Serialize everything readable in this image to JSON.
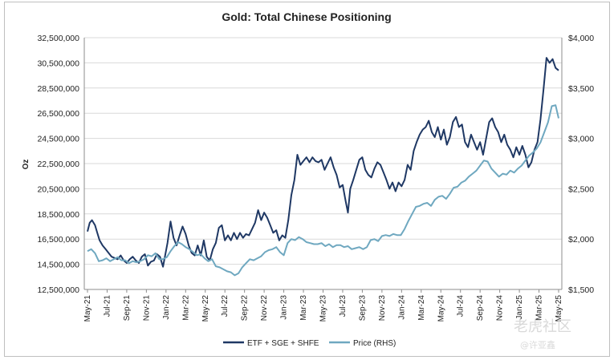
{
  "chart_data": {
    "type": "line",
    "title": "Gold: Total Chinese Positioning",
    "ylabel": "Oz",
    "y2label": "",
    "ylim": [
      12500000,
      32500000
    ],
    "y2lim": [
      1500,
      4000
    ],
    "yticks": [
      "32,500,000",
      "30,500,000",
      "28,500,000",
      "26,500,000",
      "24,500,000",
      "22,500,000",
      "20,500,000",
      "18,500,000",
      "16,500,000",
      "14,500,000",
      "12,500,000"
    ],
    "y2ticks": [
      "$4,000",
      "$3,500",
      "$3,000",
      "$2,500",
      "$2,000",
      "$1,500"
    ],
    "xticks": [
      "May-21",
      "Jul-21",
      "Sep-21",
      "Nov-21",
      "Jan-22",
      "Mar-22",
      "May-22",
      "Jul-22",
      "Sep-22",
      "Nov-22",
      "Jan-23",
      "Mar-23",
      "May-23",
      "Jul-23",
      "Sep-23",
      "Nov-23",
      "Jan-24",
      "Mar-24",
      "May-24",
      "Jul-24",
      "Sep-24",
      "Nov-24",
      "Jan-25",
      "Mar-25",
      "May-25"
    ],
    "legend_position": "bottom",
    "grid": "horizontal",
    "series": [
      {
        "name": "ETF + SGE + SHFE",
        "axis": "left",
        "color": "#1f3864",
        "points": [
          [
            0,
            17100000
          ],
          [
            0.3,
            17800000
          ],
          [
            0.6,
            18000000
          ],
          [
            1.0,
            17600000
          ],
          [
            1.3,
            17000000
          ],
          [
            1.6,
            16400000
          ],
          [
            2.0,
            16000000
          ],
          [
            2.4,
            15700000
          ],
          [
            2.8,
            15400000
          ],
          [
            3.2,
            15100000
          ],
          [
            3.6,
            15000000
          ],
          [
            4.0,
            14900000
          ],
          [
            4.4,
            15200000
          ],
          [
            4.8,
            14800000
          ],
          [
            5.2,
            14600000
          ],
          [
            5.6,
            14900000
          ],
          [
            6.0,
            15100000
          ],
          [
            6.4,
            14800000
          ],
          [
            6.8,
            14600000
          ],
          [
            7.2,
            15100000
          ],
          [
            7.6,
            15300000
          ],
          [
            8.0,
            14400000
          ],
          [
            8.4,
            14700000
          ],
          [
            8.8,
            14800000
          ],
          [
            9.2,
            15300000
          ],
          [
            9.6,
            15100000
          ],
          [
            10.0,
            14300000
          ],
          [
            10.6,
            16200000
          ],
          [
            11.0,
            17900000
          ],
          [
            11.4,
            16600000
          ],
          [
            11.8,
            16000000
          ],
          [
            12.2,
            16800000
          ],
          [
            12.6,
            17500000
          ],
          [
            13.0,
            16900000
          ],
          [
            13.4,
            16000000
          ],
          [
            13.8,
            15400000
          ],
          [
            14.2,
            15200000
          ],
          [
            14.6,
            16000000
          ],
          [
            15.0,
            15200000
          ],
          [
            15.4,
            16400000
          ],
          [
            15.8,
            15100000
          ],
          [
            16.2,
            14800000
          ],
          [
            16.6,
            15700000
          ],
          [
            17.0,
            16200000
          ],
          [
            17.4,
            17400000
          ],
          [
            17.8,
            17600000
          ],
          [
            18.2,
            16400000
          ],
          [
            18.6,
            16800000
          ],
          [
            19.0,
            16400000
          ],
          [
            19.4,
            17000000
          ],
          [
            19.8,
            16500000
          ],
          [
            20.2,
            17000000
          ],
          [
            20.6,
            16600000
          ],
          [
            21.0,
            16900000
          ],
          [
            21.4,
            16800000
          ],
          [
            21.8,
            17300000
          ],
          [
            22.2,
            17800000
          ],
          [
            22.6,
            18800000
          ],
          [
            23.0,
            18000000
          ],
          [
            23.4,
            18600000
          ],
          [
            23.8,
            18200000
          ],
          [
            24.2,
            17600000
          ],
          [
            24.6,
            17000000
          ],
          [
            25.0,
            17200000
          ],
          [
            25.4,
            16400000
          ],
          [
            25.8,
            16800000
          ],
          [
            26.2,
            16600000
          ],
          [
            26.6,
            18000000
          ],
          [
            27.0,
            20000000
          ],
          [
            27.4,
            21200000
          ],
          [
            27.8,
            23200000
          ],
          [
            28.2,
            22400000
          ],
          [
            28.6,
            22700000
          ],
          [
            29.0,
            23000000
          ],
          [
            29.4,
            22600000
          ],
          [
            29.8,
            23000000
          ],
          [
            30.2,
            22700000
          ],
          [
            30.6,
            22600000
          ],
          [
            31.0,
            22800000
          ],
          [
            31.4,
            22000000
          ],
          [
            31.8,
            22500000
          ],
          [
            32.2,
            23000000
          ],
          [
            32.6,
            22200000
          ],
          [
            33.0,
            21600000
          ],
          [
            33.4,
            20600000
          ],
          [
            33.8,
            20800000
          ],
          [
            34.2,
            19500000
          ],
          [
            34.5,
            18600000
          ],
          [
            34.8,
            20500000
          ],
          [
            35.2,
            21200000
          ],
          [
            35.6,
            22000000
          ],
          [
            36.0,
            22800000
          ],
          [
            36.4,
            23000000
          ],
          [
            36.8,
            22000000
          ],
          [
            37.2,
            21600000
          ],
          [
            37.6,
            21400000
          ],
          [
            38.0,
            22100000
          ],
          [
            38.4,
            22600000
          ],
          [
            38.8,
            22400000
          ],
          [
            39.2,
            21800000
          ],
          [
            39.6,
            21200000
          ],
          [
            40.0,
            20500000
          ],
          [
            40.4,
            21000000
          ],
          [
            40.8,
            20300000
          ],
          [
            41.2,
            21000000
          ],
          [
            41.6,
            20700000
          ],
          [
            42.0,
            21200000
          ],
          [
            42.4,
            22400000
          ],
          [
            42.8,
            22000000
          ],
          [
            43.2,
            23500000
          ],
          [
            43.6,
            24200000
          ],
          [
            44.0,
            24800000
          ],
          [
            44.4,
            25200000
          ],
          [
            44.8,
            25400000
          ],
          [
            45.2,
            25900000
          ],
          [
            45.6,
            25000000
          ],
          [
            46.0,
            24600000
          ],
          [
            46.4,
            25400000
          ],
          [
            46.8,
            24400000
          ],
          [
            47.2,
            25200000
          ],
          [
            47.6,
            24000000
          ],
          [
            48.0,
            24600000
          ],
          [
            48.4,
            25800000
          ],
          [
            48.8,
            26200000
          ],
          [
            49.2,
            25400000
          ],
          [
            49.6,
            25600000
          ],
          [
            50.0,
            24200000
          ],
          [
            50.4,
            23800000
          ],
          [
            50.8,
            24800000
          ],
          [
            51.2,
            24200000
          ],
          [
            51.6,
            23600000
          ],
          [
            52.0,
            24200000
          ],
          [
            52.4,
            23200000
          ],
          [
            52.8,
            24500000
          ],
          [
            53.2,
            25800000
          ],
          [
            53.6,
            26100000
          ],
          [
            54.0,
            25400000
          ],
          [
            54.4,
            25000000
          ],
          [
            54.8,
            24200000
          ],
          [
            55.2,
            24800000
          ],
          [
            55.6,
            24000000
          ],
          [
            56.0,
            23600000
          ],
          [
            56.4,
            23000000
          ],
          [
            56.8,
            23800000
          ],
          [
            57.2,
            23200000
          ],
          [
            57.6,
            23900000
          ],
          [
            58.0,
            23200000
          ],
          [
            58.4,
            22200000
          ],
          [
            58.8,
            22600000
          ],
          [
            59.2,
            23600000
          ],
          [
            59.6,
            24200000
          ],
          [
            60.0,
            26000000
          ],
          [
            60.4,
            28400000
          ],
          [
            60.8,
            30900000
          ],
          [
            61.2,
            30500000
          ],
          [
            61.6,
            30800000
          ],
          [
            62.0,
            30100000
          ],
          [
            62.4,
            29900000
          ]
        ]
      },
      {
        "name": "Price (RHS)",
        "axis": "right",
        "color": "#6fa8c0",
        "points": [
          [
            0,
            1880
          ],
          [
            0.5,
            1900
          ],
          [
            1.0,
            1860
          ],
          [
            1.5,
            1780
          ],
          [
            2.0,
            1790
          ],
          [
            2.5,
            1810
          ],
          [
            3.0,
            1780
          ],
          [
            3.5,
            1800
          ],
          [
            4.0,
            1820
          ],
          [
            4.5,
            1790
          ],
          [
            5.0,
            1790
          ],
          [
            5.5,
            1760
          ],
          [
            6.0,
            1780
          ],
          [
            6.5,
            1770
          ],
          [
            7.0,
            1780
          ],
          [
            7.5,
            1800
          ],
          [
            8.0,
            1840
          ],
          [
            8.5,
            1830
          ],
          [
            9.0,
            1860
          ],
          [
            9.5,
            1800
          ],
          [
            10.0,
            1800
          ],
          [
            10.5,
            1820
          ],
          [
            11.0,
            1880
          ],
          [
            11.5,
            1930
          ],
          [
            12.0,
            1970
          ],
          [
            12.5,
            1950
          ],
          [
            13.0,
            1920
          ],
          [
            13.5,
            1900
          ],
          [
            14.0,
            1870
          ],
          [
            14.5,
            1840
          ],
          [
            15.0,
            1850
          ],
          [
            15.5,
            1810
          ],
          [
            16.0,
            1780
          ],
          [
            16.5,
            1800
          ],
          [
            17.0,
            1730
          ],
          [
            17.5,
            1720
          ],
          [
            18.0,
            1700
          ],
          [
            18.5,
            1680
          ],
          [
            19.0,
            1670
          ],
          [
            19.5,
            1640
          ],
          [
            20.0,
            1660
          ],
          [
            20.5,
            1720
          ],
          [
            21.0,
            1760
          ],
          [
            21.5,
            1800
          ],
          [
            22.0,
            1790
          ],
          [
            22.5,
            1810
          ],
          [
            23.0,
            1830
          ],
          [
            23.5,
            1870
          ],
          [
            24.0,
            1890
          ],
          [
            24.5,
            1900
          ],
          [
            25.0,
            1920
          ],
          [
            25.5,
            1870
          ],
          [
            26.0,
            1840
          ],
          [
            26.5,
            1960
          ],
          [
            27.0,
            2000
          ],
          [
            27.5,
            1990
          ],
          [
            28.0,
            2020
          ],
          [
            28.5,
            2000
          ],
          [
            29.0,
            1970
          ],
          [
            29.5,
            1960
          ],
          [
            30.0,
            1950
          ],
          [
            30.5,
            1950
          ],
          [
            31.0,
            1960
          ],
          [
            31.5,
            1930
          ],
          [
            32.0,
            1950
          ],
          [
            32.5,
            1920
          ],
          [
            33.0,
            1940
          ],
          [
            33.5,
            1940
          ],
          [
            34.0,
            1920
          ],
          [
            34.5,
            1930
          ],
          [
            35.0,
            1900
          ],
          [
            35.5,
            1910
          ],
          [
            36.0,
            1920
          ],
          [
            36.5,
            1900
          ],
          [
            37.0,
            1920
          ],
          [
            37.5,
            1990
          ],
          [
            38.0,
            2000
          ],
          [
            38.5,
            1980
          ],
          [
            39.0,
            2030
          ],
          [
            39.5,
            2040
          ],
          [
            40.0,
            2030
          ],
          [
            40.5,
            2050
          ],
          [
            41.0,
            2040
          ],
          [
            41.5,
            2040
          ],
          [
            42.0,
            2100
          ],
          [
            42.5,
            2180
          ],
          [
            43.0,
            2250
          ],
          [
            43.5,
            2320
          ],
          [
            44.0,
            2330
          ],
          [
            44.5,
            2350
          ],
          [
            45.0,
            2360
          ],
          [
            45.5,
            2330
          ],
          [
            46.0,
            2390
          ],
          [
            46.5,
            2420
          ],
          [
            47.0,
            2430
          ],
          [
            47.5,
            2400
          ],
          [
            48.0,
            2450
          ],
          [
            48.5,
            2510
          ],
          [
            49.0,
            2520
          ],
          [
            49.5,
            2560
          ],
          [
            50.0,
            2580
          ],
          [
            50.5,
            2620
          ],
          [
            51.0,
            2650
          ],
          [
            51.5,
            2680
          ],
          [
            52.0,
            2730
          ],
          [
            52.5,
            2780
          ],
          [
            53.0,
            2770
          ],
          [
            53.5,
            2700
          ],
          [
            54.0,
            2660
          ],
          [
            54.5,
            2620
          ],
          [
            55.0,
            2650
          ],
          [
            55.5,
            2640
          ],
          [
            56.0,
            2680
          ],
          [
            56.5,
            2660
          ],
          [
            57.0,
            2700
          ],
          [
            57.5,
            2730
          ],
          [
            58.0,
            2780
          ],
          [
            58.5,
            2830
          ],
          [
            59.0,
            2860
          ],
          [
            59.5,
            2900
          ],
          [
            60.0,
            2960
          ],
          [
            60.5,
            3060
          ],
          [
            61.0,
            3160
          ],
          [
            61.5,
            3320
          ],
          [
            62.0,
            3330
          ],
          [
            62.4,
            3200
          ]
        ]
      }
    ]
  },
  "watermark": {
    "text1": "老虎社区",
    "text2": "@许亚鑫"
  }
}
